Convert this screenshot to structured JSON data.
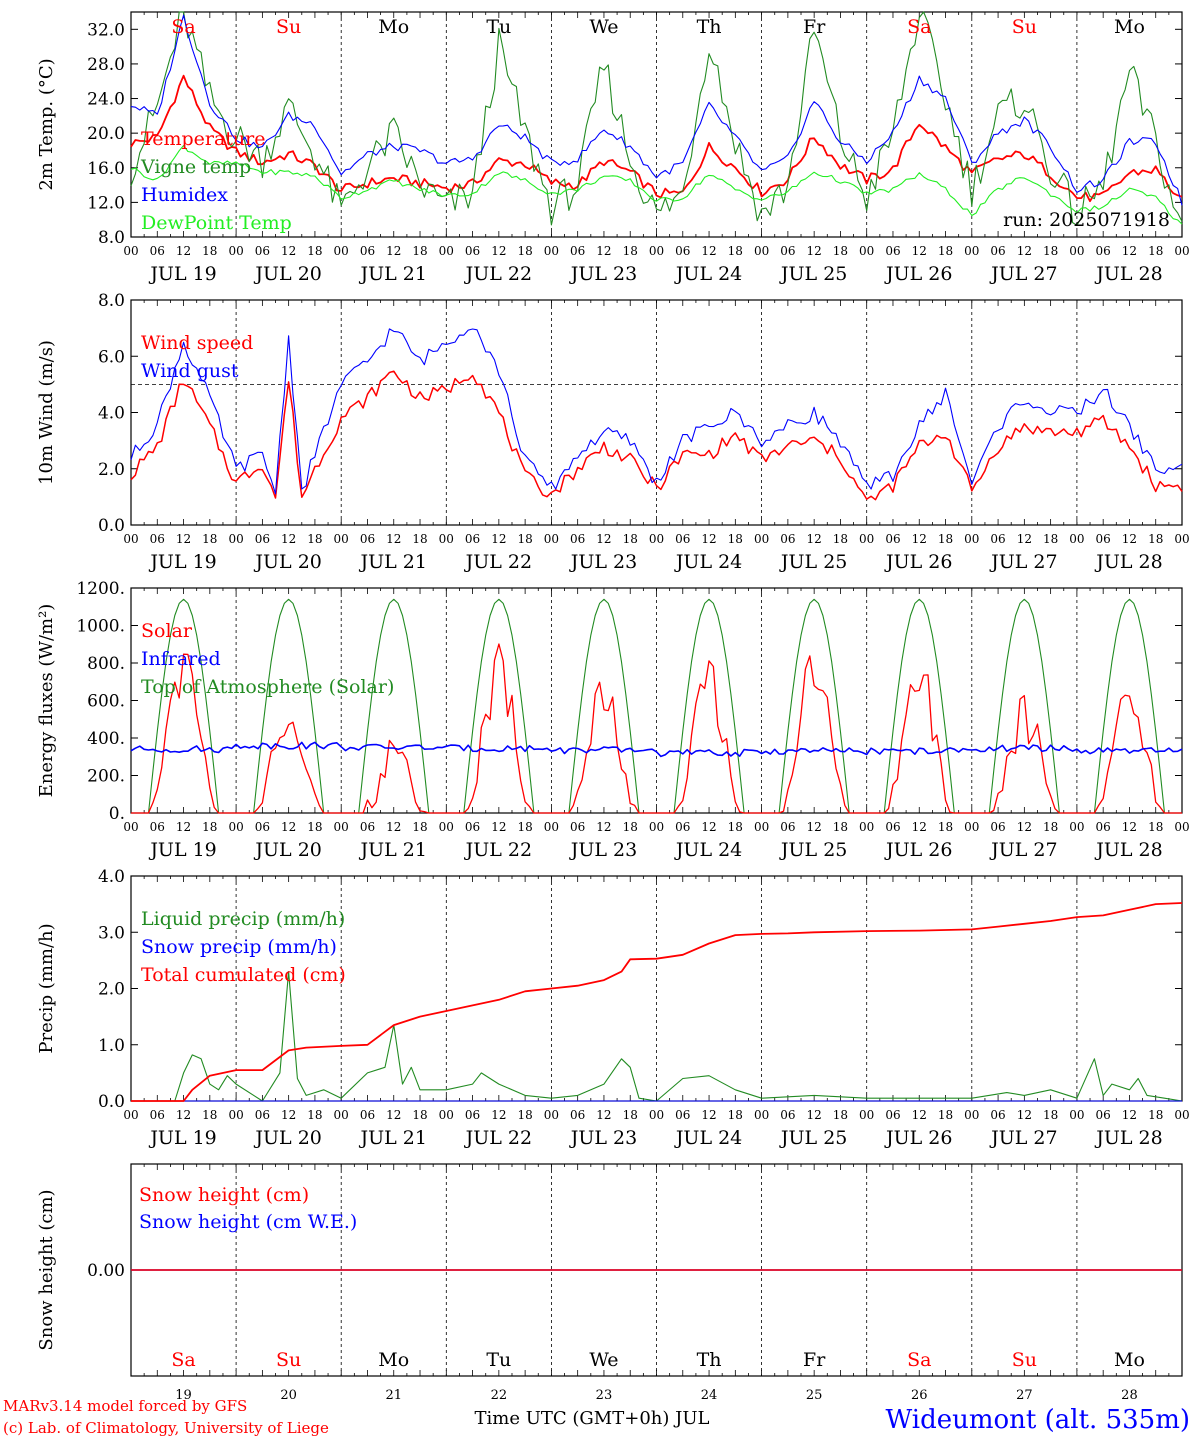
{
  "meta": {
    "run_label": "run: 2025071918",
    "credit_line1": "MARv3.14 model forced by GFS",
    "credit_line2": "(c) Lab. of Climatology, University of Liege",
    "xaxis_title": "Time UTC (GMT+0h) JUL",
    "station": "Wideumont (alt. 535m)"
  },
  "colors": {
    "red": "#ff0000",
    "blue": "#0000ff",
    "darkgreen": "#228b22",
    "lightgreen": "#22ee22",
    "black": "#000000"
  },
  "days": {
    "dates": [
      "JUL 19",
      "JUL 20",
      "JUL 21",
      "JUL 22",
      "JUL 23",
      "JUL 24",
      "JUL 25",
      "JUL 26",
      "JUL 27",
      "JUL 28"
    ],
    "weekdays": [
      "Sa",
      "Su",
      "Mo",
      "Tu",
      "We",
      "Th",
      "Fr",
      "Sa",
      "Su",
      "Mo"
    ],
    "weekday_colors": [
      "#ff0000",
      "#ff0000",
      "#000000",
      "#000000",
      "#000000",
      "#000000",
      "#000000",
      "#ff0000",
      "#ff0000",
      "#000000"
    ],
    "day_numbers": [
      "19",
      "20",
      "21",
      "22",
      "23",
      "24",
      "25",
      "26",
      "27",
      "28"
    ],
    "hour_ticks": [
      "00",
      "06",
      "12",
      "18"
    ],
    "final_tick": "00"
  },
  "chart_data": [
    {
      "type": "line",
      "id": "temperature",
      "ylabel": "2m Temp. (°C)",
      "ylim": [
        8,
        34
      ],
      "yticks": [
        "8.0",
        "12.0",
        "16.0",
        "20.0",
        "24.0",
        "28.0",
        "32.0"
      ],
      "x_unit": "hours since JUL 19 00 UTC (10 days)",
      "series": [
        {
          "name": "Temperature",
          "color": "#ff0000",
          "x": [
            0,
            6,
            12,
            18,
            24,
            30,
            36,
            42,
            48,
            54,
            60,
            66,
            72,
            78,
            84,
            90,
            96,
            102,
            108,
            114,
            120,
            126,
            132,
            138,
            144,
            150,
            156,
            162,
            168,
            174,
            180,
            186,
            192,
            198,
            204,
            210,
            216,
            222,
            228,
            234,
            240
          ],
          "values": [
            18.8,
            19.5,
            26.5,
            20.5,
            17.8,
            16.6,
            17.6,
            16.2,
            13.4,
            14.2,
            14.8,
            14.2,
            13.7,
            14.1,
            16.8,
            16.5,
            14.3,
            14.0,
            16.8,
            15.5,
            13.0,
            13.0,
            18.4,
            16.0,
            13.2,
            14.7,
            19.6,
            16.3,
            14.6,
            15.8,
            21.3,
            18.3,
            15.3,
            17.0,
            17.6,
            15.3,
            12.6,
            12.6,
            15.4,
            15.8,
            12.1
          ]
        },
        {
          "name": "Vigne temp",
          "color": "#228b22",
          "x": [
            0,
            6,
            12,
            18,
            24,
            30,
            36,
            42,
            48,
            54,
            60,
            66,
            72,
            78,
            84,
            90,
            96,
            102,
            108,
            114,
            120,
            126,
            132,
            138,
            144,
            150,
            156,
            162,
            168,
            174,
            180,
            186,
            192,
            198,
            204,
            210,
            216,
            222,
            228,
            234,
            240
          ],
          "values": [
            16.0,
            23.0,
            34.0,
            24.0,
            19.5,
            17.0,
            23.0,
            17.5,
            11.0,
            16.0,
            20.0,
            14.0,
            11.5,
            13.0,
            30.0,
            20.0,
            11.5,
            14.0,
            28.0,
            17.0,
            10.5,
            13.0,
            31.0,
            19.0,
            10.5,
            14.0,
            32.0,
            19.5,
            12.5,
            20.0,
            34.0,
            24.0,
            13.5,
            22.0,
            24.0,
            16.0,
            10.5,
            14.0,
            27.0,
            19.0,
            8.5
          ]
        },
        {
          "name": "Humidex",
          "color": "#0000ff",
          "x": [
            0,
            6,
            12,
            18,
            24,
            30,
            36,
            42,
            48,
            54,
            60,
            66,
            72,
            78,
            84,
            90,
            96,
            102,
            108,
            114,
            120,
            126,
            132,
            138,
            144,
            150,
            156,
            162,
            168,
            174,
            180,
            186,
            192,
            198,
            204,
            210,
            216,
            222,
            228,
            234,
            240
          ],
          "values": [
            23.3,
            22.0,
            33.5,
            23.5,
            19.5,
            18.2,
            22.0,
            21.0,
            15.3,
            17.5,
            18.5,
            18.0,
            16.5,
            17.0,
            21.0,
            19.5,
            16.5,
            17.0,
            20.5,
            18.5,
            15.0,
            16.5,
            23.2,
            19.5,
            15.5,
            17.0,
            23.8,
            19.0,
            16.8,
            20.0,
            26.3,
            24.0,
            16.5,
            20.0,
            21.5,
            18.5,
            13.5,
            14.5,
            19.0,
            19.0,
            12.0
          ]
        },
        {
          "name": "DewPoint Temp",
          "color": "#22ee22",
          "x": [
            0,
            6,
            12,
            18,
            24,
            30,
            36,
            42,
            48,
            54,
            60,
            66,
            72,
            78,
            84,
            90,
            96,
            102,
            108,
            114,
            120,
            126,
            132,
            138,
            144,
            150,
            156,
            162,
            168,
            174,
            180,
            186,
            192,
            198,
            204,
            210,
            216,
            222,
            228,
            234,
            240
          ],
          "values": [
            16.0,
            14.5,
            18.5,
            16.5,
            16.5,
            15.5,
            15.5,
            15.0,
            12.5,
            13.5,
            14.5,
            13.5,
            12.8,
            13.0,
            15.5,
            14.5,
            13.0,
            13.5,
            15.0,
            14.5,
            12.2,
            12.5,
            15.3,
            13.5,
            12.3,
            13.2,
            15.5,
            14.5,
            13.0,
            13.5,
            15.3,
            13.5,
            10.5,
            13.5,
            15.0,
            13.0,
            11.0,
            11.5,
            13.5,
            12.5,
            9.3
          ]
        }
      ],
      "legend": [
        "Temperature",
        "Vigne temp",
        "Humidex",
        "DewPoint Temp"
      ]
    },
    {
      "type": "line",
      "id": "wind",
      "ylabel": "10m Wind (m/s)",
      "ylim": [
        0,
        8
      ],
      "yticks": [
        "0.0",
        "2.0",
        "4.0",
        "6.0",
        "8.0"
      ],
      "reference_line": 5,
      "series": [
        {
          "name": "Wind speed",
          "color": "#ff0000",
          "x": [
            0,
            6,
            12,
            18,
            24,
            30,
            33,
            36,
            39,
            42,
            48,
            54,
            60,
            66,
            72,
            78,
            84,
            90,
            96,
            102,
            108,
            114,
            120,
            126,
            132,
            138,
            144,
            150,
            156,
            162,
            168,
            174,
            180,
            186,
            192,
            198,
            204,
            210,
            216,
            222,
            228,
            234,
            240
          ],
          "values": [
            1.8,
            2.8,
            5.2,
            3.5,
            1.5,
            2.2,
            1.0,
            5.2,
            1.0,
            2.0,
            3.8,
            4.5,
            5.5,
            4.5,
            4.8,
            5.5,
            4.0,
            1.7,
            1.1,
            2.0,
            2.8,
            2.3,
            1.3,
            2.5,
            2.5,
            3.2,
            2.3,
            2.8,
            3.0,
            2.4,
            0.8,
            1.4,
            2.8,
            3.3,
            1.2,
            2.8,
            3.5,
            3.3,
            3.3,
            3.7,
            2.8,
            1.4,
            1.4
          ]
        },
        {
          "name": "Wind gust",
          "color": "#0000ff",
          "x": [
            0,
            6,
            12,
            18,
            24,
            30,
            33,
            36,
            39,
            42,
            48,
            54,
            60,
            66,
            72,
            78,
            84,
            90,
            96,
            102,
            108,
            114,
            120,
            126,
            132,
            138,
            144,
            150,
            156,
            162,
            168,
            174,
            180,
            186,
            192,
            198,
            204,
            210,
            216,
            222,
            228,
            234,
            240
          ],
          "values": [
            2.4,
            3.6,
            6.5,
            4.5,
            2.0,
            2.5,
            1.2,
            6.7,
            1.2,
            2.5,
            5.0,
            5.8,
            7.0,
            5.8,
            6.5,
            7.2,
            5.5,
            2.3,
            1.3,
            2.5,
            3.3,
            3.0,
            1.5,
            3.0,
            3.5,
            4.0,
            3.0,
            3.5,
            4.0,
            3.0,
            1.3,
            1.8,
            3.5,
            4.7,
            1.5,
            3.5,
            4.5,
            4.0,
            4.0,
            4.8,
            3.5,
            2.0,
            2.0
          ]
        }
      ],
      "legend": [
        "Wind speed",
        "Wind gust"
      ]
    },
    {
      "type": "line",
      "id": "energy",
      "ylabel": "Energy fluxes (W/m²)",
      "ylim": [
        0,
        1200
      ],
      "yticks": [
        "0.",
        "200.",
        "400.",
        "600.",
        "800.",
        "1000.",
        "1200."
      ],
      "solar_peaks": [
        850,
        500,
        320,
        800,
        630,
        790,
        840,
        800,
        560,
        650
      ],
      "toa_peak": 1140,
      "infrared_mean": [
        340,
        360,
        350,
        345,
        335,
        320,
        330,
        330,
        345,
        330
      ],
      "series": [
        {
          "name": "Solar",
          "color": "#ff0000"
        },
        {
          "name": "Infrared",
          "color": "#0000ff"
        },
        {
          "name": "Top of Atmosphere (Solar)",
          "color": "#228b22"
        }
      ],
      "legend": [
        "Solar",
        "Infrared",
        "Top of Atmosphere (Solar)"
      ]
    },
    {
      "type": "line",
      "id": "precip",
      "ylabel": "Precip (mm/h)",
      "ylim": [
        0,
        4
      ],
      "yticks": [
        "0.0",
        "1.0",
        "2.0",
        "3.0",
        "4.0"
      ],
      "series": [
        {
          "name": "Liquid precip (mm/h)",
          "color": "#228b22",
          "x": [
            0,
            10,
            12,
            14,
            16,
            18,
            20,
            22,
            24,
            30,
            34,
            36,
            38,
            40,
            44,
            48,
            54,
            58,
            60,
            62,
            64,
            66,
            72,
            78,
            80,
            84,
            90,
            96,
            102,
            108,
            112,
            114,
            116,
            120,
            126,
            132,
            138,
            144,
            156,
            168,
            180,
            192,
            200,
            204,
            210,
            216,
            220,
            222,
            224,
            228,
            230,
            232,
            236,
            240
          ],
          "values": [
            0,
            0,
            0.5,
            0.82,
            0.75,
            0.3,
            0.2,
            0.45,
            0.3,
            0,
            0.5,
            2.3,
            0.4,
            0.1,
            0.2,
            0.05,
            0.5,
            0.6,
            1.35,
            0.3,
            0.6,
            0.2,
            0.2,
            0.3,
            0.5,
            0.3,
            0.1,
            0.05,
            0.1,
            0.3,
            0.75,
            0.6,
            0.05,
            0,
            0.4,
            0.45,
            0.2,
            0.05,
            0.1,
            0.05,
            0.05,
            0.05,
            0.15,
            0.1,
            0.2,
            0.05,
            0.75,
            0.1,
            0.3,
            0.2,
            0.4,
            0.1,
            0.05,
            0
          ]
        },
        {
          "name": "Snow precip (mm/h)",
          "color": "#0000ff",
          "x": [
            0,
            240
          ],
          "values": [
            0,
            0
          ]
        },
        {
          "name": "Total cumulated (cm)",
          "color": "#ff0000",
          "x": [
            0,
            12,
            14,
            18,
            24,
            30,
            36,
            40,
            48,
            54,
            60,
            66,
            72,
            78,
            84,
            90,
            96,
            102,
            108,
            112,
            114,
            120,
            126,
            132,
            138,
            144,
            150,
            156,
            168,
            180,
            192,
            198,
            204,
            210,
            216,
            222,
            228,
            234,
            240
          ],
          "values": [
            0,
            0,
            0.2,
            0.45,
            0.55,
            0.55,
            0.9,
            0.95,
            0.98,
            1.0,
            1.35,
            1.5,
            1.6,
            1.7,
            1.8,
            1.95,
            2.0,
            2.05,
            2.15,
            2.3,
            2.52,
            2.53,
            2.6,
            2.8,
            2.95,
            2.97,
            2.98,
            3.0,
            3.02,
            3.03,
            3.05,
            3.1,
            3.15,
            3.2,
            3.27,
            3.3,
            3.4,
            3.5,
            3.52
          ]
        }
      ],
      "legend": [
        "Liquid precip (mm/h)",
        "Snow precip (mm/h)",
        "Total cumulated (cm)"
      ]
    },
    {
      "type": "line",
      "id": "snow",
      "ylabel": "Snow height (cm)",
      "yticks": [
        "0.00"
      ],
      "series": [
        {
          "name": "Snow height (cm)",
          "color": "#ff0000",
          "x": [
            0,
            240
          ],
          "values": [
            0,
            0
          ]
        },
        {
          "name": "Snow height (cm W.E.)",
          "color": "#0000ff",
          "x": [
            0,
            240
          ],
          "values": [
            0,
            0
          ]
        }
      ],
      "legend": [
        "Snow height (cm)",
        "Snow height (cm W.E.)"
      ]
    }
  ]
}
